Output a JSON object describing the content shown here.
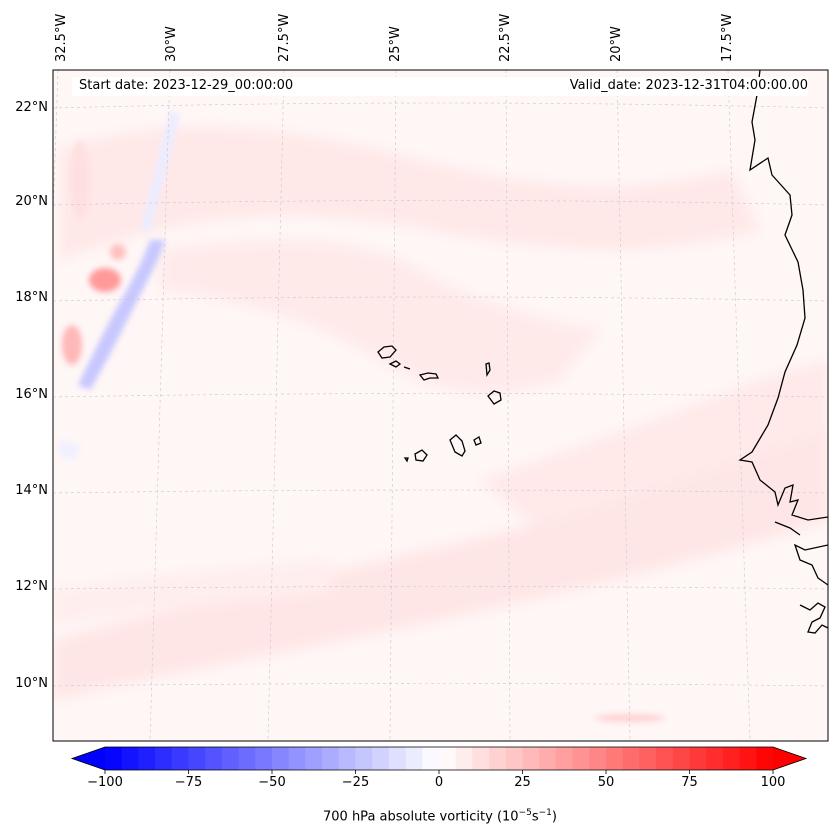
{
  "map": {
    "start_label": "Start date: 2023-12-29_00:00:00",
    "valid_label": "Valid_date: 2023-12-31T04:00:00.00",
    "lon_labels": [
      "32.5°W",
      "30°W",
      "27.5°W",
      "25°W",
      "22.5°W",
      "20°W",
      "17.5°W"
    ],
    "lat_labels": [
      "22°N",
      "20°N",
      "18°N",
      "16°N",
      "14°N",
      "12°N",
      "10°N"
    ],
    "gridlines": true,
    "coastline_color": "#000000"
  },
  "colorbar": {
    "min": -100,
    "max": 100,
    "tick_labels": [
      "−100",
      "−75",
      "−50",
      "−25",
      "0",
      "25",
      "50",
      "75",
      "100"
    ],
    "label_prefix": "700 hPa absolute vorticity (10",
    "label_exp1": "−5",
    "label_mid": "s",
    "label_exp2": "−1",
    "label_suffix": ")",
    "extend": "both",
    "colormap": "bwr",
    "colors": {
      "negative": "#0000ff",
      "neutral": "#ffffff",
      "positive": "#ff0000"
    }
  }
}
